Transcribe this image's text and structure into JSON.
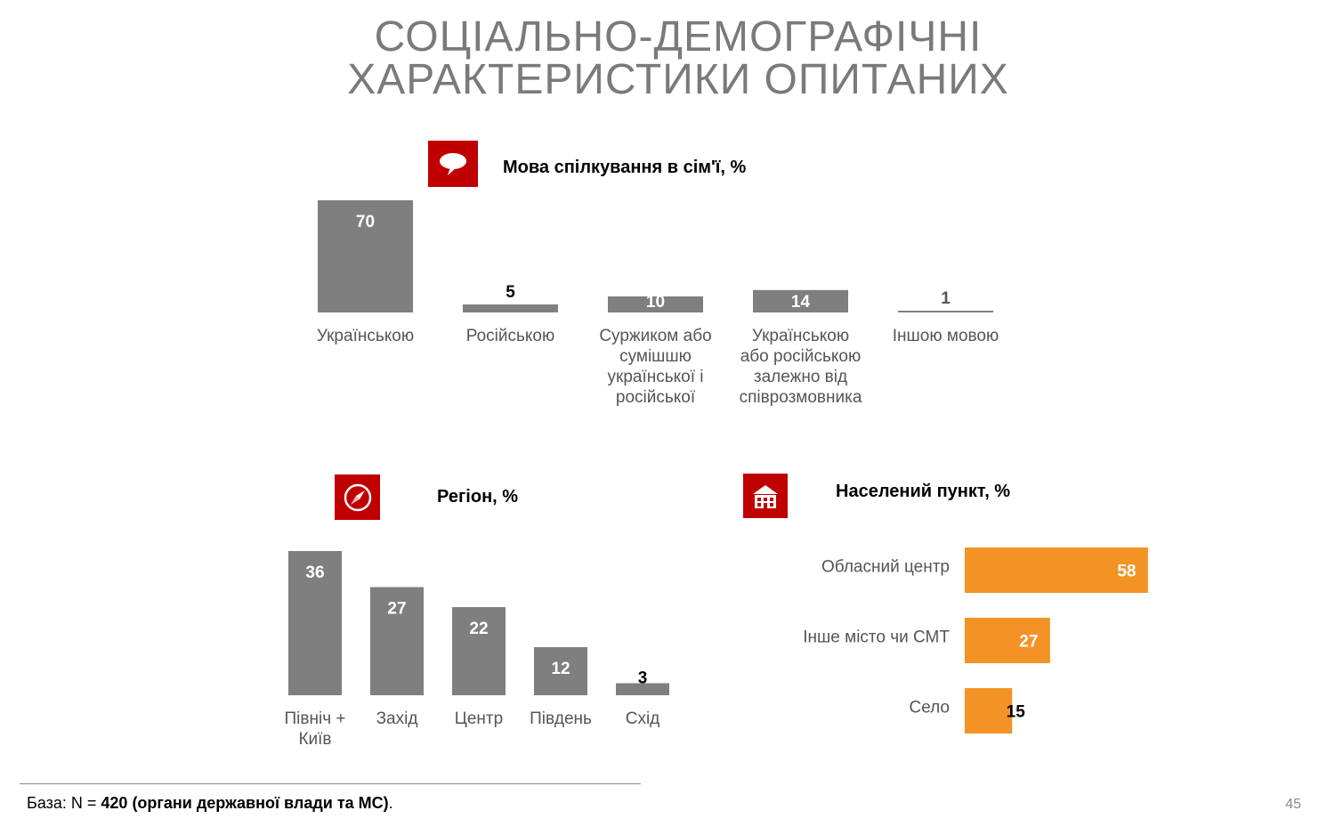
{
  "title": {
    "line1": "СОЦІАЛЬНО-ДЕМОГРАФІЧНІ",
    "line2": "ХАРАКТЕРИСТИКИ ОПИТАНИХ"
  },
  "sections": {
    "language": {
      "heading": "Мова спілкування в сім'ї, %",
      "icon": "speech-bubble-icon"
    },
    "region": {
      "heading": "Регіон, %",
      "icon": "compass-icon"
    },
    "settlement": {
      "heading": "Населений пункт, %",
      "icon": "buildings-icon"
    }
  },
  "colors": {
    "bar_gray": "#7f7f7f",
    "bar_orange": "#f39325",
    "accent_red": "#c00000"
  },
  "chart_data": [
    {
      "id": "language",
      "type": "bar",
      "title": "Мова спілкування в сім'ї, %",
      "categories": [
        "Українською",
        "Російською",
        "Суржиком або сумішшю української і російської",
        "Українською або російською залежно від співрозмовника",
        "Іншою мовою"
      ],
      "category_lines": [
        [
          "Українською"
        ],
        [
          "Російською"
        ],
        [
          "Суржиком або",
          "сумішшю",
          "української і",
          "російської"
        ],
        [
          "Українською",
          "або російською",
          "залежно від",
          "співрозмовника"
        ],
        [
          "Іншою мовою"
        ]
      ],
      "values": [
        70,
        5,
        10,
        14,
        1
      ],
      "value_labels": [
        "70",
        "5",
        "10",
        "14",
        "1"
      ]
    },
    {
      "id": "region",
      "type": "bar",
      "title": "Регіон, %",
      "categories": [
        "Північ + Київ",
        "Захід",
        "Центр",
        "Південь",
        "Схід"
      ],
      "category_lines": [
        [
          "Північ +",
          "Київ"
        ],
        [
          "Захід"
        ],
        [
          "Центр"
        ],
        [
          "Південь"
        ],
        [
          "Схід"
        ]
      ],
      "values": [
        36,
        27,
        22,
        12,
        3
      ],
      "value_labels": [
        "36",
        "27",
        "22",
        "12",
        "3"
      ]
    },
    {
      "id": "settlement",
      "type": "bar",
      "orientation": "horizontal",
      "title": "Населений пункт, %",
      "categories": [
        "Обласний центр",
        "Інше місто чи СМТ",
        "Село"
      ],
      "values": [
        58,
        27,
        15
      ],
      "value_labels": [
        "58",
        "27",
        "15"
      ]
    }
  ],
  "footer": {
    "prefix": "База: N = ",
    "bold": "420 (органи державної влади та МС)",
    "suffix": "."
  },
  "page_number": "45"
}
